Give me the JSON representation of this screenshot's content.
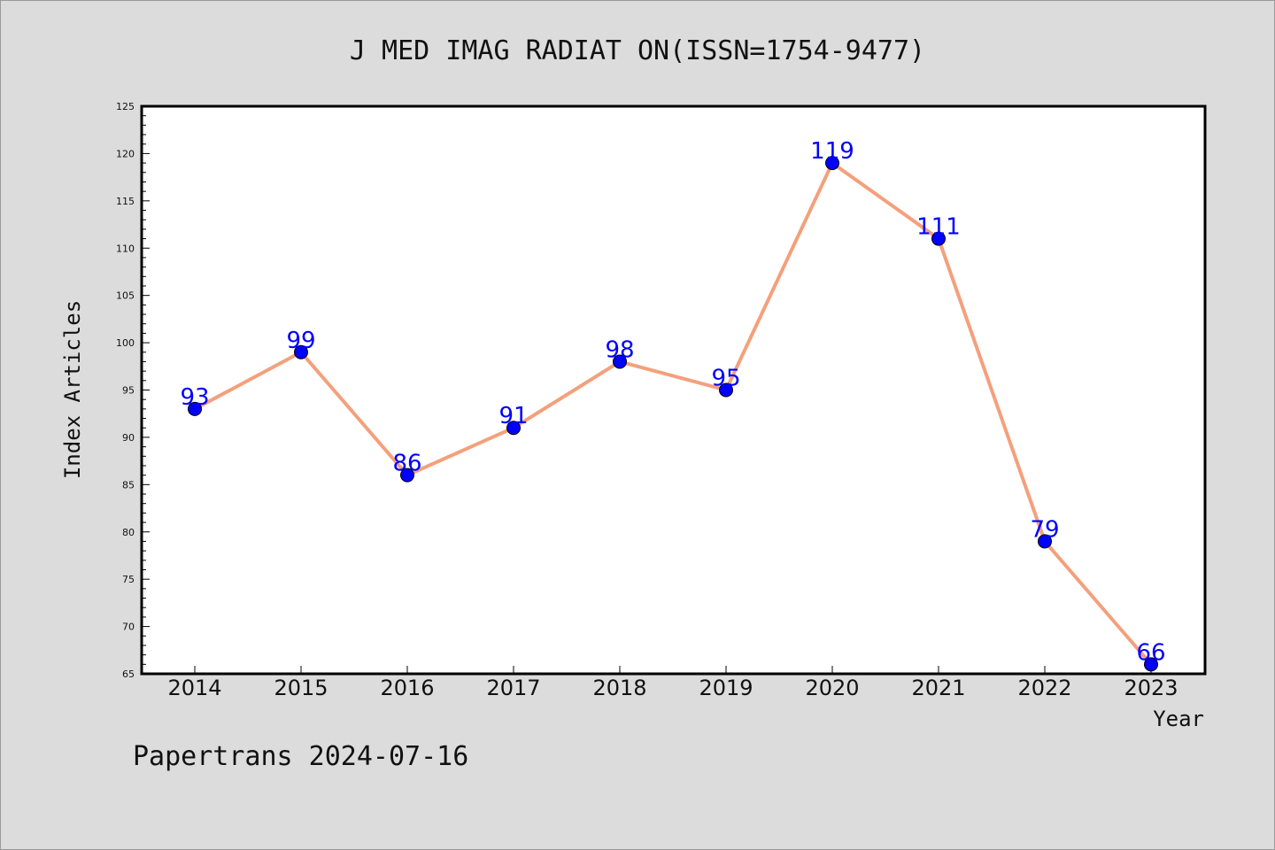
{
  "chart_data": {
    "type": "line",
    "title": "J MED IMAG RADIAT ON(ISSN=1754-9477)",
    "xlabel": "Year",
    "ylabel": "Index Articles",
    "categories": [
      "2014",
      "2015",
      "2016",
      "2017",
      "2018",
      "2019",
      "2020",
      "2021",
      "2022",
      "2023"
    ],
    "values": [
      93,
      99,
      86,
      91,
      98,
      95,
      119,
      111,
      79,
      66
    ],
    "ylim": [
      65,
      125
    ],
    "yticks": [
      65,
      70,
      75,
      80,
      85,
      90,
      95,
      100,
      105,
      110,
      115,
      120,
      125
    ],
    "data_labels": true,
    "grid": false,
    "line_color": "#f4a07c",
    "marker_color": "#0000ff",
    "label_color": "#0000ff"
  },
  "footer": "Papertrans 2024-07-16"
}
